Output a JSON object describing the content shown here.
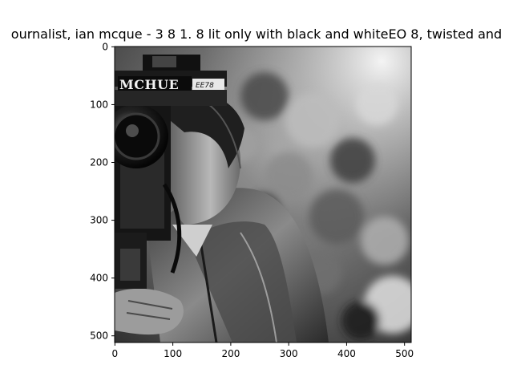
{
  "figure": {
    "title": "ournalist, ian mcque - 3 8 1. 8 lit only with black and whiteEO 8, twisted and",
    "sign_text_main": "MCHUE",
    "sign_text_small": "EE78",
    "x_ticks": [
      {
        "value": 0,
        "label": "0"
      },
      {
        "value": 100,
        "label": "100"
      },
      {
        "value": 200,
        "label": "200"
      },
      {
        "value": 300,
        "label": "300"
      },
      {
        "value": 400,
        "label": "400"
      },
      {
        "value": 500,
        "label": "500"
      }
    ],
    "y_ticks": [
      {
        "value": 0,
        "label": "0"
      },
      {
        "value": 100,
        "label": "100"
      },
      {
        "value": 200,
        "label": "200"
      },
      {
        "value": 300,
        "label": "300"
      },
      {
        "value": 400,
        "label": "400"
      },
      {
        "value": 500,
        "label": "500"
      }
    ],
    "image_extent": [
      0,
      512,
      512,
      0
    ]
  }
}
